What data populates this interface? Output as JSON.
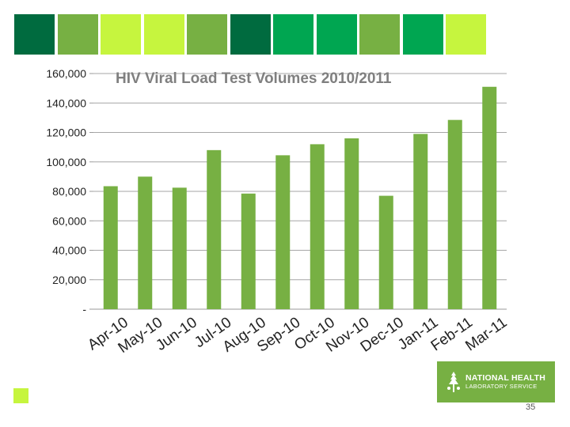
{
  "header": {
    "squares": [
      {
        "color": "#006b3f"
      },
      {
        "color": "#77b043"
      },
      {
        "color": "#c6f53e"
      },
      {
        "color": "#c6f53e"
      },
      {
        "color": "#77b043"
      },
      {
        "color": "#006b3f"
      },
      {
        "color": "#00a651"
      },
      {
        "color": "#00a651"
      },
      {
        "color": "#77b043"
      },
      {
        "color": "#00a651"
      },
      {
        "color": "#c6f53e"
      }
    ]
  },
  "chart_data": {
    "type": "bar",
    "title": "HIV Viral Load Test Volumes 2010/2011",
    "categories": [
      "Apr-10",
      "May-10",
      "Jun-10",
      "Jul-10",
      "Aug-10",
      "Sep-10",
      "Oct-10",
      "Nov-10",
      "Dec-10",
      "Jan-11",
      "Feb-11",
      "Mar-11"
    ],
    "series": [
      {
        "values": [
          83500,
          90000,
          82500,
          108000,
          78500,
          104500,
          112000,
          116000,
          77000,
          119000,
          128500,
          151000
        ],
        "color": "#77b043"
      }
    ],
    "y_ticks": [
      {
        "value": 0,
        "label": "-"
      },
      {
        "value": 20000,
        "label": "20,000"
      },
      {
        "value": 40000,
        "label": "40,000"
      },
      {
        "value": 60000,
        "label": "60,000"
      },
      {
        "value": 80000,
        "label": "80,000"
      },
      {
        "value": 100000,
        "label": "100,000"
      },
      {
        "value": 120000,
        "label": "120,000"
      },
      {
        "value": 140000,
        "label": "140,000"
      },
      {
        "value": 160000,
        "label": "160,000"
      }
    ],
    "ylim": [
      0,
      160000
    ],
    "grid": true,
    "legend": "none"
  },
  "footer": {
    "square_color": "#c6f53e",
    "logo_color": "#77b043",
    "logo_line1": "NATIONAL HEALTH",
    "logo_line2": "LABORATORY SERVICE",
    "page_number": "35"
  }
}
